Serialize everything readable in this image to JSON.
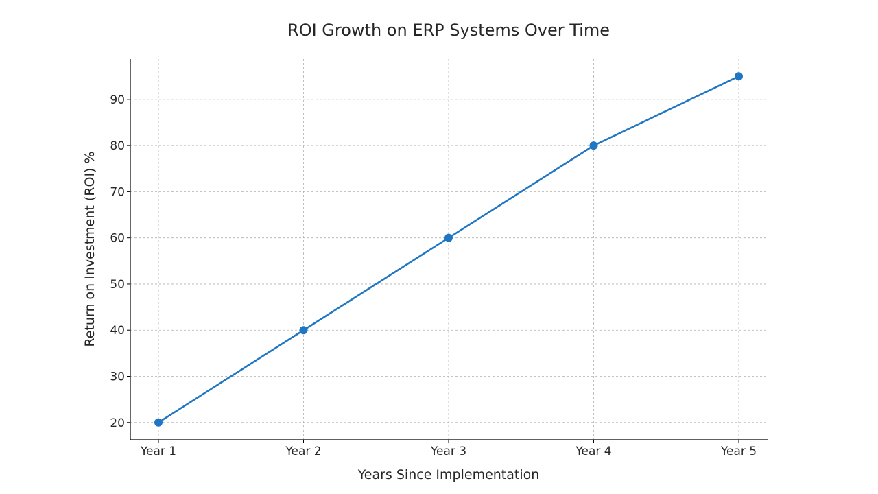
{
  "chart_data": {
    "type": "line",
    "title": "ROI Growth on ERP Systems Over Time",
    "xlabel": "Years Since Implementation",
    "ylabel": "Return on Investment (ROI) %",
    "categories": [
      "Year 1",
      "Year 2",
      "Year 3",
      "Year 4",
      "Year 5"
    ],
    "series": [
      {
        "values": [
          20,
          40,
          60,
          80,
          95
        ],
        "color": "#1f77c4",
        "marker": "circle"
      }
    ],
    "yticks": [
      20,
      30,
      40,
      50,
      60,
      70,
      80,
      90
    ],
    "ylim": [
      16.25,
      98.75
    ],
    "grid": true,
    "legend": "none"
  }
}
